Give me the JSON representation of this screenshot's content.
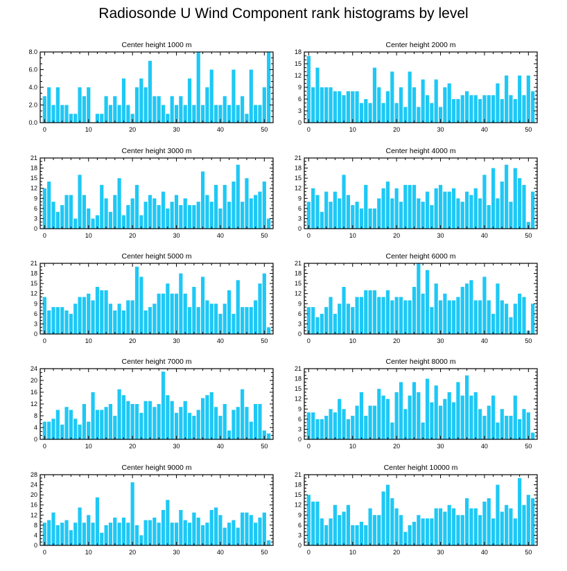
{
  "figure": {
    "title": "Radiosonde U Wind Component rank histograms by level"
  },
  "style": {
    "bar_color": "#1ec8f5",
    "axis_color": "#000000"
  },
  "chart_data": [
    {
      "type": "bar",
      "title": "Center height 1000 m",
      "xlim": [
        -1,
        52
      ],
      "xticks": [
        0,
        10,
        20,
        30,
        40,
        50
      ],
      "ylim": [
        0,
        8
      ],
      "yticks": [
        0,
        2,
        4,
        6,
        8
      ],
      "ytick_labels": [
        "0.0",
        "2.0",
        "4.0",
        "6.0",
        "8.0"
      ],
      "categories": [
        1,
        2,
        3,
        4,
        5,
        6,
        7,
        8,
        9,
        10,
        11,
        12,
        13,
        14,
        15,
        16,
        17,
        18,
        19,
        20,
        21,
        22,
        23,
        24,
        25,
        26,
        27,
        28,
        29,
        30,
        31,
        32,
        33,
        34,
        35,
        36,
        37,
        38,
        39,
        40,
        41,
        42,
        43,
        44,
        45,
        46,
        47,
        48,
        49,
        50,
        51,
        52
      ],
      "values": [
        3,
        4,
        2,
        4,
        2,
        2,
        1,
        1,
        4,
        3,
        4,
        0,
        1,
        1,
        3,
        2,
        3,
        2,
        5,
        2,
        1,
        4,
        5,
        4,
        7,
        3,
        3,
        2,
        1,
        3,
        2,
        3,
        2,
        5,
        2,
        8,
        2,
        4,
        6,
        2,
        2,
        3,
        2,
        6,
        2,
        3,
        1,
        6,
        2,
        2,
        4,
        8
      ]
    },
    {
      "type": "bar",
      "title": "Center height 2000 m",
      "xlim": [
        -1,
        52
      ],
      "xticks": [
        0,
        10,
        20,
        30,
        40,
        50
      ],
      "ylim": [
        0,
        18
      ],
      "yticks": [
        0,
        3,
        6,
        9,
        12,
        15,
        18
      ],
      "ytick_labels": [
        "0",
        "3",
        "6",
        "9",
        "12",
        "15",
        "18"
      ],
      "categories": [
        1,
        2,
        3,
        4,
        5,
        6,
        7,
        8,
        9,
        10,
        11,
        12,
        13,
        14,
        15,
        16,
        17,
        18,
        19,
        20,
        21,
        22,
        23,
        24,
        25,
        26,
        27,
        28,
        29,
        30,
        31,
        32,
        33,
        34,
        35,
        36,
        37,
        38,
        39,
        40,
        41,
        42,
        43,
        44,
        45,
        46,
        47,
        48,
        49,
        50,
        51,
        52
      ],
      "values": [
        17,
        9,
        14,
        9,
        9,
        9,
        8,
        8,
        7,
        8,
        8,
        8,
        5,
        6,
        5,
        14,
        9,
        5,
        8,
        13,
        5,
        9,
        4,
        13,
        9,
        4,
        11,
        7,
        5,
        11,
        4,
        9,
        10,
        6,
        6,
        7,
        8,
        7,
        7,
        6,
        7,
        7,
        7,
        10,
        6,
        12,
        7,
        6,
        12,
        7,
        12,
        8
      ]
    },
    {
      "type": "bar",
      "title": "Center height 3000 m",
      "xlim": [
        -1,
        52
      ],
      "xticks": [
        0,
        10,
        20,
        30,
        40,
        50
      ],
      "ylim": [
        0,
        21
      ],
      "yticks": [
        0,
        3,
        6,
        9,
        12,
        15,
        18,
        21
      ],
      "ytick_labels": [
        "0",
        "3",
        "6",
        "9",
        "12",
        "15",
        "18",
        "21"
      ],
      "categories": [
        1,
        2,
        3,
        4,
        5,
        6,
        7,
        8,
        9,
        10,
        11,
        12,
        13,
        14,
        15,
        16,
        17,
        18,
        19,
        20,
        21,
        22,
        23,
        24,
        25,
        26,
        27,
        28,
        29,
        30,
        31,
        32,
        33,
        34,
        35,
        36,
        37,
        38,
        39,
        40,
        41,
        42,
        43,
        44,
        45,
        46,
        47,
        48,
        49,
        50,
        51,
        52
      ],
      "values": [
        12,
        14,
        8,
        5,
        7,
        10,
        10,
        3,
        16,
        10,
        6,
        3,
        4,
        13,
        9,
        5,
        10,
        15,
        4,
        7,
        9,
        13,
        4,
        8,
        10,
        9,
        7,
        11,
        6,
        8,
        10,
        7,
        9,
        7,
        7,
        8,
        17,
        10,
        8,
        13,
        6,
        13,
        8,
        14,
        19,
        8,
        15,
        9,
        10,
        11,
        14,
        3
      ]
    },
    {
      "type": "bar",
      "title": "Center height 4000 m",
      "xlim": [
        -1,
        52
      ],
      "xticks": [
        0,
        10,
        20,
        30,
        40,
        50
      ],
      "ylim": [
        0,
        21
      ],
      "yticks": [
        0,
        3,
        6,
        9,
        12,
        15,
        18,
        21
      ],
      "ytick_labels": [
        "0",
        "3",
        "6",
        "9",
        "12",
        "15",
        "18",
        "21"
      ],
      "categories": [
        1,
        2,
        3,
        4,
        5,
        6,
        7,
        8,
        9,
        10,
        11,
        12,
        13,
        14,
        15,
        16,
        17,
        18,
        19,
        20,
        21,
        22,
        23,
        24,
        25,
        26,
        27,
        28,
        29,
        30,
        31,
        32,
        33,
        34,
        35,
        36,
        37,
        38,
        39,
        40,
        41,
        42,
        43,
        44,
        45,
        46,
        47,
        48,
        49,
        50,
        51,
        52
      ],
      "values": [
        8,
        12,
        10,
        5,
        11,
        8,
        11,
        9,
        16,
        10,
        7,
        8,
        6,
        13,
        6,
        6,
        9,
        12,
        14,
        9,
        12,
        8,
        13,
        13,
        13,
        9,
        8,
        11,
        7,
        12,
        13,
        11,
        11,
        12,
        9,
        8,
        11,
        10,
        12,
        9,
        16,
        7,
        18,
        9,
        14,
        19,
        8,
        18,
        15,
        13,
        2,
        11
      ]
    },
    {
      "type": "bar",
      "title": "Center height 5000 m",
      "xlim": [
        -1,
        52
      ],
      "xticks": [
        0,
        10,
        20,
        30,
        40,
        50
      ],
      "ylim": [
        0,
        21
      ],
      "yticks": [
        0,
        3,
        6,
        9,
        12,
        15,
        18,
        21
      ],
      "ytick_labels": [
        "0",
        "3",
        "6",
        "9",
        "12",
        "15",
        "18",
        "21"
      ],
      "categories": [
        1,
        2,
        3,
        4,
        5,
        6,
        7,
        8,
        9,
        10,
        11,
        12,
        13,
        14,
        15,
        16,
        17,
        18,
        19,
        20,
        21,
        22,
        23,
        24,
        25,
        26,
        27,
        28,
        29,
        30,
        31,
        32,
        33,
        34,
        35,
        36,
        37,
        38,
        39,
        40,
        41,
        42,
        43,
        44,
        45,
        46,
        47,
        48,
        49,
        50,
        51,
        52
      ],
      "values": [
        11,
        7,
        8,
        8,
        8,
        7,
        6,
        9,
        11,
        11,
        12,
        10,
        14,
        13,
        13,
        9,
        7,
        9,
        7,
        10,
        10,
        20,
        17,
        7,
        8,
        9,
        12,
        12,
        15,
        12,
        12,
        18,
        12,
        8,
        14,
        8,
        17,
        10,
        9,
        9,
        6,
        9,
        13,
        6,
        16,
        8,
        8,
        8,
        10,
        15,
        18,
        2
      ]
    },
    {
      "type": "bar",
      "title": "Center height 6000 m",
      "xlim": [
        -1,
        52
      ],
      "xticks": [
        0,
        10,
        20,
        30,
        40,
        50
      ],
      "ylim": [
        0,
        21
      ],
      "yticks": [
        0,
        3,
        6,
        9,
        12,
        15,
        18,
        21
      ],
      "ytick_labels": [
        "0",
        "3",
        "6",
        "9",
        "12",
        "15",
        "18",
        "21"
      ],
      "categories": [
        1,
        2,
        3,
        4,
        5,
        6,
        7,
        8,
        9,
        10,
        11,
        12,
        13,
        14,
        15,
        16,
        17,
        18,
        19,
        20,
        21,
        22,
        23,
        24,
        25,
        26,
        27,
        28,
        29,
        30,
        31,
        32,
        33,
        34,
        35,
        36,
        37,
        38,
        39,
        40,
        41,
        42,
        43,
        44,
        45,
        46,
        47,
        48,
        49,
        50,
        51,
        52
      ],
      "values": [
        8,
        8,
        5,
        6,
        8,
        11,
        6,
        9,
        14,
        9,
        8,
        11,
        11,
        13,
        13,
        13,
        11,
        11,
        13,
        10,
        11,
        11,
        10,
        10,
        14,
        21,
        12,
        19,
        8,
        15,
        10,
        12,
        10,
        10,
        11,
        14,
        15,
        16,
        10,
        10,
        17,
        10,
        6,
        15,
        10,
        9,
        5,
        9,
        12,
        11,
        1,
        9
      ]
    },
    {
      "type": "bar",
      "title": "Center height 7000 m",
      "xlim": [
        -1,
        52
      ],
      "xticks": [
        0,
        10,
        20,
        30,
        40,
        50
      ],
      "ylim": [
        0,
        24
      ],
      "yticks": [
        0,
        4,
        8,
        12,
        16,
        20,
        24
      ],
      "ytick_labels": [
        "0",
        "4",
        "8",
        "12",
        "16",
        "20",
        "24"
      ],
      "categories": [
        1,
        2,
        3,
        4,
        5,
        6,
        7,
        8,
        9,
        10,
        11,
        12,
        13,
        14,
        15,
        16,
        17,
        18,
        19,
        20,
        21,
        22,
        23,
        24,
        25,
        26,
        27,
        28,
        29,
        30,
        31,
        32,
        33,
        34,
        35,
        36,
        37,
        38,
        39,
        40,
        41,
        42,
        43,
        44,
        45,
        46,
        47,
        48,
        49,
        50,
        51,
        52
      ],
      "values": [
        6,
        6,
        7,
        10,
        5,
        11,
        10,
        7,
        5,
        12,
        6,
        16,
        10,
        10,
        11,
        12,
        8,
        17,
        15,
        13,
        12,
        12,
        9,
        13,
        13,
        11,
        12,
        23,
        15,
        13,
        9,
        11,
        13,
        9,
        8,
        10,
        14,
        15,
        16,
        11,
        8,
        12,
        3,
        10,
        11,
        17,
        11,
        6,
        12,
        12,
        3,
        2
      ]
    },
    {
      "type": "bar",
      "title": "Center height 8000 m",
      "xlim": [
        -1,
        52
      ],
      "xticks": [
        0,
        10,
        20,
        30,
        40,
        50
      ],
      "ylim": [
        0,
        21
      ],
      "yticks": [
        0,
        3,
        6,
        9,
        12,
        15,
        18,
        21
      ],
      "ytick_labels": [
        "0",
        "3",
        "6",
        "9",
        "12",
        "15",
        "18",
        "21"
      ],
      "categories": [
        1,
        2,
        3,
        4,
        5,
        6,
        7,
        8,
        9,
        10,
        11,
        12,
        13,
        14,
        15,
        16,
        17,
        18,
        19,
        20,
        21,
        22,
        23,
        24,
        25,
        26,
        27,
        28,
        29,
        30,
        31,
        32,
        33,
        34,
        35,
        36,
        37,
        38,
        39,
        40,
        41,
        42,
        43,
        44,
        45,
        46,
        47,
        48,
        49,
        50,
        51,
        52
      ],
      "values": [
        8,
        8,
        6,
        6,
        7,
        9,
        8,
        12,
        9,
        6,
        7,
        10,
        14,
        7,
        10,
        10,
        15,
        13,
        12,
        5,
        14,
        17,
        9,
        13,
        17,
        14,
        5,
        18,
        11,
        16,
        10,
        12,
        14,
        11,
        17,
        13,
        19,
        13,
        14,
        9,
        7,
        10,
        13,
        5,
        9,
        7,
        7,
        13,
        6,
        9,
        8,
        2
      ]
    },
    {
      "type": "bar",
      "title": "Center height 9000 m",
      "xlim": [
        -1,
        52
      ],
      "xticks": [
        0,
        10,
        20,
        30,
        40,
        50
      ],
      "ylim": [
        0,
        28
      ],
      "yticks": [
        0,
        4,
        8,
        12,
        16,
        20,
        24,
        28
      ],
      "ytick_labels": [
        "0",
        "4",
        "8",
        "12",
        "16",
        "20",
        "24",
        "28"
      ],
      "categories": [
        1,
        2,
        3,
        4,
        5,
        6,
        7,
        8,
        9,
        10,
        11,
        12,
        13,
        14,
        15,
        16,
        17,
        18,
        19,
        20,
        21,
        22,
        23,
        24,
        25,
        26,
        27,
        28,
        29,
        30,
        31,
        32,
        33,
        34,
        35,
        36,
        37,
        38,
        39,
        40,
        41,
        42,
        43,
        44,
        45,
        46,
        47,
        48,
        49,
        50,
        51,
        52
      ],
      "values": [
        9,
        10,
        13,
        8,
        9,
        10,
        6,
        9,
        15,
        9,
        12,
        9,
        19,
        5,
        8,
        9,
        11,
        9,
        11,
        9,
        25,
        8,
        4,
        10,
        10,
        11,
        9,
        14,
        18,
        9,
        9,
        14,
        10,
        9,
        13,
        11,
        8,
        9,
        14,
        15,
        12,
        7,
        9,
        10,
        7,
        13,
        13,
        12,
        9,
        11,
        13,
        2
      ]
    },
    {
      "type": "bar",
      "title": "Center height 10000 m",
      "xlim": [
        -1,
        52
      ],
      "xticks": [
        0,
        10,
        20,
        30,
        40,
        50
      ],
      "ylim": [
        0,
        21
      ],
      "yticks": [
        0,
        3,
        6,
        9,
        12,
        15,
        18,
        21
      ],
      "ytick_labels": [
        "0",
        "3",
        "6",
        "9",
        "12",
        "15",
        "18",
        "21"
      ],
      "categories": [
        1,
        2,
        3,
        4,
        5,
        6,
        7,
        8,
        9,
        10,
        11,
        12,
        13,
        14,
        15,
        16,
        17,
        18,
        19,
        20,
        21,
        22,
        23,
        24,
        25,
        26,
        27,
        28,
        29,
        30,
        31,
        32,
        33,
        34,
        35,
        36,
        37,
        38,
        39,
        40,
        41,
        42,
        43,
        44,
        45,
        46,
        47,
        48,
        49,
        50,
        51,
        52
      ],
      "values": [
        15,
        13,
        13,
        8,
        6,
        8,
        12,
        9,
        10,
        12,
        6,
        6,
        7,
        6,
        11,
        9,
        9,
        16,
        18,
        14,
        11,
        9,
        4,
        6,
        7,
        9,
        8,
        8,
        8,
        11,
        11,
        10,
        12,
        11,
        9,
        9,
        14,
        11,
        11,
        9,
        13,
        14,
        8,
        18,
        10,
        12,
        11,
        8,
        20,
        12,
        15,
        14
      ]
    }
  ]
}
